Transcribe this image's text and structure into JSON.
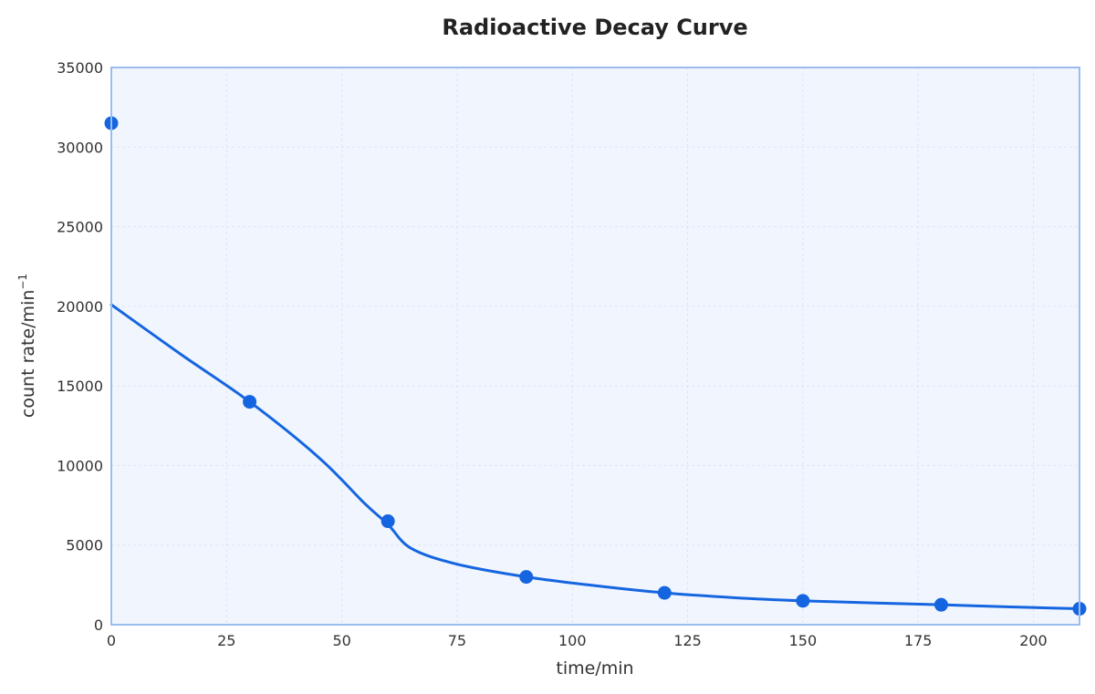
{
  "chart_data": {
    "type": "line",
    "title": "Radioactive Decay Curve",
    "xlabel": "time/min",
    "ylabel": "count rate/min",
    "ylabel_superscript": "−1",
    "xlim": [
      0,
      210
    ],
    "ylim": [
      0,
      35000
    ],
    "x_ticks": [
      "0",
      "25",
      "50",
      "75",
      "100",
      "125",
      "150",
      "175",
      "200"
    ],
    "y_ticks": [
      "0",
      "5000",
      "10000",
      "15000",
      "20000",
      "25000",
      "30000",
      "35000"
    ],
    "grid": true,
    "legend": "none",
    "series": [
      {
        "points": [
          {
            "x": 0,
            "y": 31500
          },
          {
            "x": 30,
            "y": 14000
          },
          {
            "x": 60,
            "y": 6500
          },
          {
            "x": 90,
            "y": 3000
          },
          {
            "x": 120,
            "y": 2000
          },
          {
            "x": 150,
            "y": 1500
          },
          {
            "x": 180,
            "y": 1250
          },
          {
            "x": 210,
            "y": 1000
          }
        ]
      }
    ],
    "fitted_curve": {
      "points": [
        {
          "x": 0,
          "y": 20100
        },
        {
          "x": 15,
          "y": 17000
        },
        {
          "x": 30,
          "y": 14000
        },
        {
          "x": 45,
          "y": 10500
        },
        {
          "x": 55,
          "y": 7600
        },
        {
          "x": 60,
          "y": 6300
        },
        {
          "x": 65,
          "y": 4800
        },
        {
          "x": 75,
          "y": 3800
        },
        {
          "x": 90,
          "y": 3000
        },
        {
          "x": 105,
          "y": 2450
        },
        {
          "x": 120,
          "y": 2000
        },
        {
          "x": 135,
          "y": 1700
        },
        {
          "x": 150,
          "y": 1500
        },
        {
          "x": 165,
          "y": 1370
        },
        {
          "x": 180,
          "y": 1250
        },
        {
          "x": 195,
          "y": 1120
        },
        {
          "x": 210,
          "y": 1000
        }
      ]
    },
    "colors": {
      "line": "#1565e0",
      "marker": "#1565e0",
      "plot_background": "#f1f6fe",
      "plot_border": "#9bbcf0",
      "grid": "#dbe5f3"
    }
  }
}
